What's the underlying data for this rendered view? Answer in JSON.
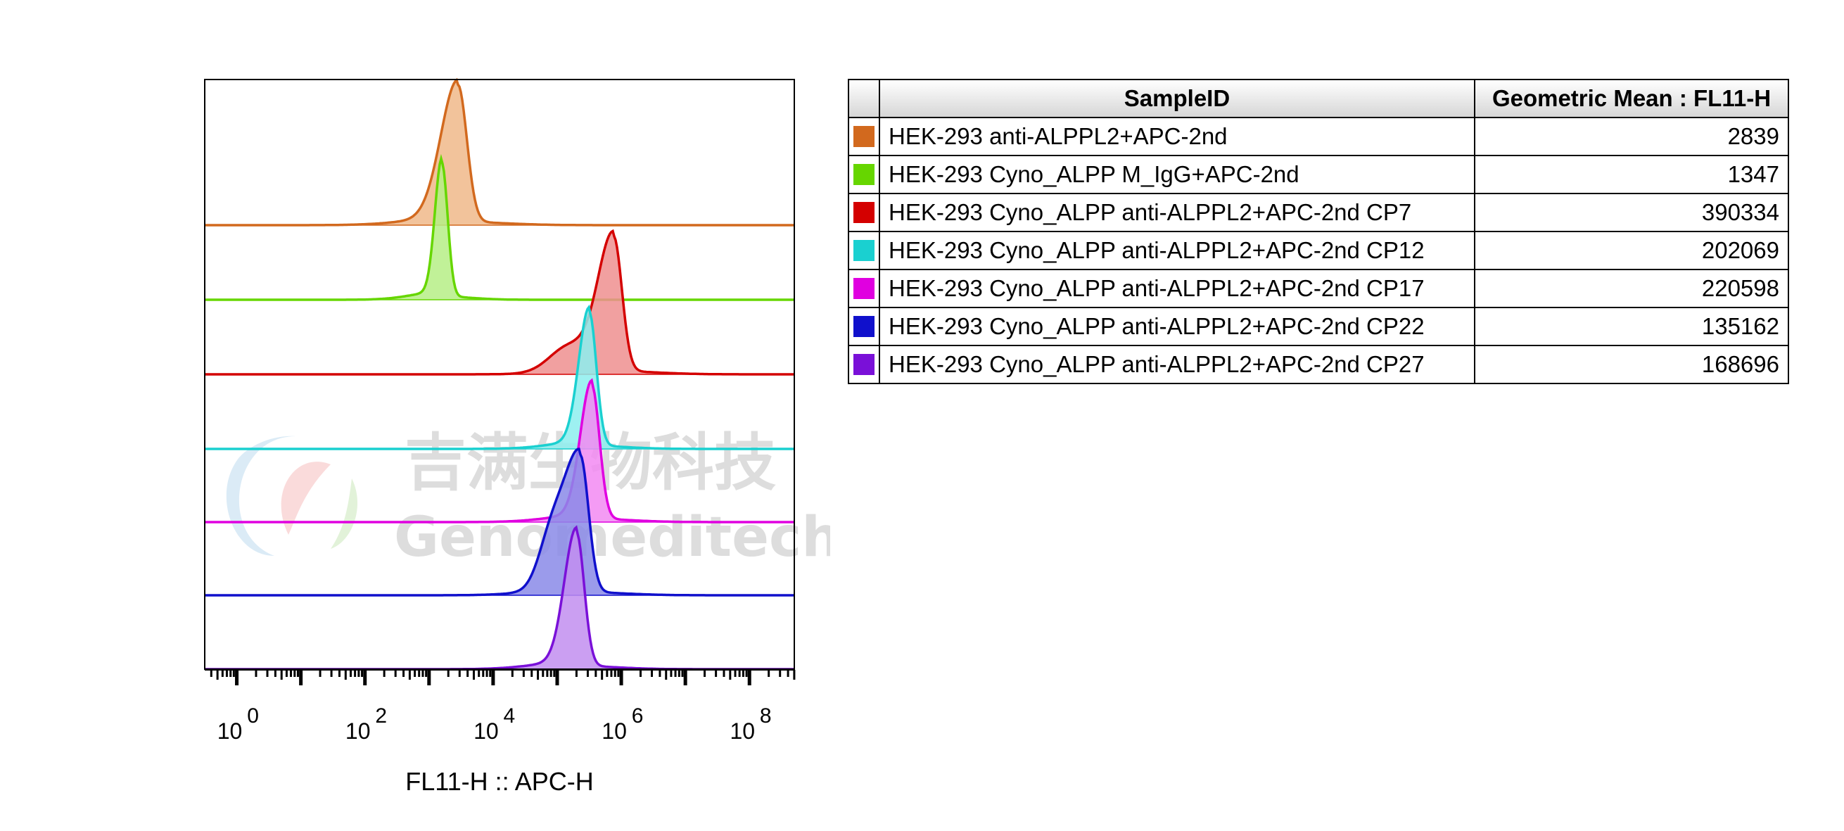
{
  "chart_data": {
    "type": "area",
    "subtype": "staggered flow cytometry histogram overlay",
    "xlabel": "FL11-H :: APC-H",
    "x_scale": "log",
    "x_ticks": [
      {
        "base": "10",
        "exp": "0"
      },
      {
        "base": "10",
        "exp": "2"
      },
      {
        "base": "10",
        "exp": "4"
      },
      {
        "base": "10",
        "exp": "6"
      },
      {
        "base": "10",
        "exp": "8"
      }
    ],
    "series": [
      {
        "name": "HEK-293 anti-ALPPL2+APC-2nd",
        "color": "#d2691e",
        "fill": "#f0b88a",
        "peak_log10": 3.45
      },
      {
        "name": "HEK-293 Cyno_ALPP M_IgG+APC-2nd",
        "color": "#66d600",
        "fill": "#b6ee86",
        "peak_log10": 3.2
      },
      {
        "name": "HEK-293 Cyno_ALPP anti-ALPPL2+APC-2nd CP7",
        "color": "#d40000",
        "fill": "#ee8f8f",
        "peak_log10": 5.88
      },
      {
        "name": "HEK-293 Cyno_ALPP anti-ALPPL2+APC-2nd CP12",
        "color": "#1ad0d0",
        "fill": "#8deeee",
        "peak_log10": 5.5
      },
      {
        "name": "HEK-293 Cyno_ALPP anti-ALPPL2+APC-2nd CP17",
        "color": "#e000e0",
        "fill": "#f28af2",
        "peak_log10": 5.54
      },
      {
        "name": "HEK-293 Cyno_ALPP anti-ALPPL2+APC-2nd CP22",
        "color": "#1010cc",
        "fill": "#8a8ae8",
        "peak_log10": 5.36
      },
      {
        "name": "HEK-293 Cyno_ALPP anti-ALPPL2+APC-2nd CP27",
        "color": "#7a10d8",
        "fill": "#c28ef0",
        "peak_log10": 5.3
      }
    ],
    "table": {
      "headers": [
        "SampleID",
        "Geometric Mean : FL11-H"
      ],
      "rows": [
        {
          "sample": "HEK-293 anti-ALPPL2+APC-2nd",
          "value": "2839",
          "color": "#d2691e"
        },
        {
          "sample": "HEK-293 Cyno_ALPP M_IgG+APC-2nd",
          "value": "1347",
          "color": "#66d600"
        },
        {
          "sample": "HEK-293 Cyno_ALPP anti-ALPPL2+APC-2nd CP7",
          "value": "390334",
          "color": "#d40000"
        },
        {
          "sample": "HEK-293 Cyno_ALPP anti-ALPPL2+APC-2nd CP12",
          "value": "202069",
          "color": "#1ad0d0"
        },
        {
          "sample": "HEK-293 Cyno_ALPP anti-ALPPL2+APC-2nd CP17",
          "value": "220598",
          "color": "#e000e0"
        },
        {
          "sample": "HEK-293 Cyno_ALPP anti-ALPPL2+APC-2nd CP22",
          "value": "135162",
          "color": "#1010cc"
        },
        {
          "sample": "HEK-293 Cyno_ALPP anti-ALPPL2+APC-2nd CP27",
          "value": "168696",
          "color": "#7a10d8"
        }
      ]
    }
  },
  "watermark": {
    "text_cn": "吉满生物科技",
    "text_en": "Genomeditech"
  }
}
